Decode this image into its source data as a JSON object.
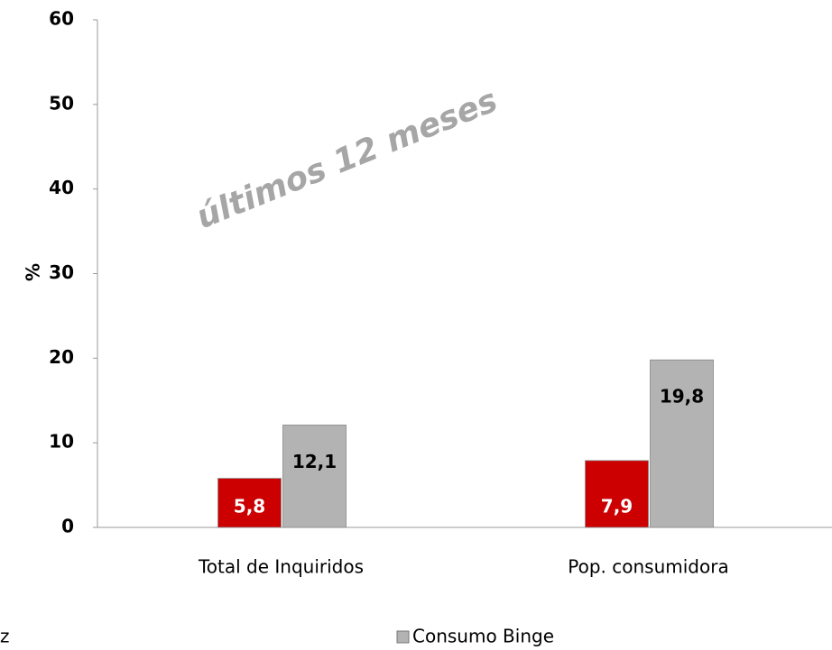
{
  "chart_data": {
    "type": "bar",
    "categories": [
      "Total de Inquiridos",
      "Pop. consumidora"
    ],
    "series": [
      {
        "name": "z",
        "color": "#cc0000",
        "values": [
          5.8,
          7.9
        ],
        "value_labels": [
          "5,8",
          "7,9"
        ]
      },
      {
        "name": "Consumo Binge",
        "color": "#b3b3b3",
        "values": [
          12.1,
          19.8
        ],
        "value_labels": [
          "12,1",
          "19,8"
        ]
      }
    ],
    "y_label": "%",
    "annotation": "últimos 12 meses",
    "ylim": [
      0,
      60
    ],
    "yticks": [
      0,
      10,
      20,
      30,
      40,
      50,
      60
    ]
  }
}
